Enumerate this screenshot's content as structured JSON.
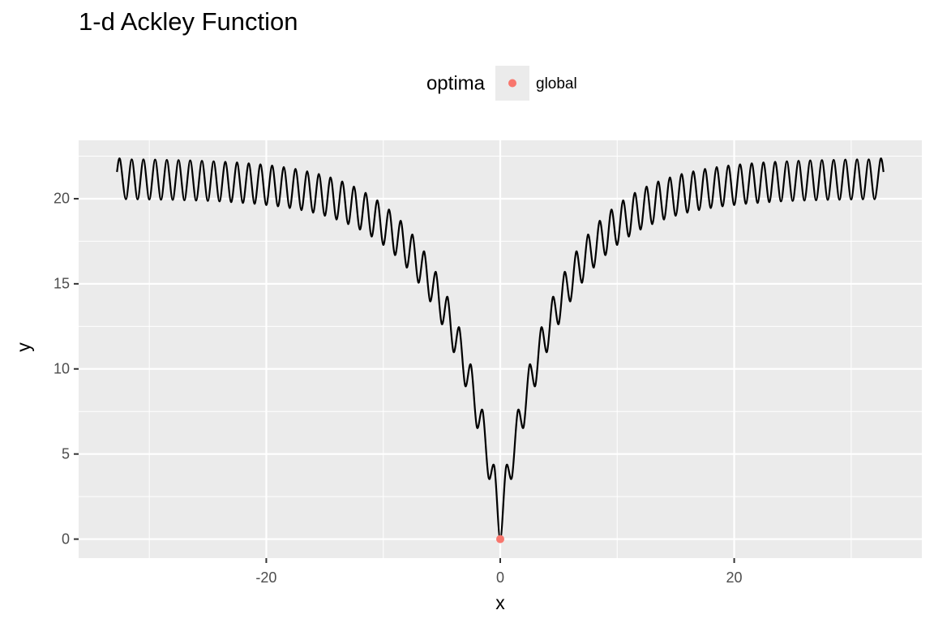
{
  "chart_data": {
    "type": "line",
    "title": "1-d Ackley Function",
    "x_label": "x",
    "y_label": "y",
    "xlim": [
      -36.04,
      36.04
    ],
    "ylim": [
      -1.116,
      23.43
    ],
    "xticks": [
      -20,
      0,
      20
    ],
    "yticks": [
      0,
      5,
      10,
      15,
      20
    ],
    "x_minor_breaks": [
      -30,
      -10,
      10,
      30
    ],
    "y_minor_breaks": [
      2.5,
      7.5,
      12.5,
      17.5,
      22.5
    ],
    "grid": true,
    "legend": "top",
    "x": [
      -32.768,
      -32.5,
      -32,
      -31.5,
      -31,
      -30.5,
      -30,
      -29.5,
      -29,
      -28.5,
      -28,
      -27.5,
      -27,
      -26.5,
      -26,
      -25.5,
      -25,
      -24.5,
      -24,
      -23.5,
      -23,
      -22.5,
      -22,
      -21.5,
      -21,
      -20.5,
      -20,
      -19.5,
      -19,
      -18.5,
      -18,
      -17.5,
      -17,
      -16.5,
      -16,
      -15.5,
      -15,
      -14.5,
      -14,
      -13.5,
      -13,
      -12.5,
      -12,
      -11.5,
      -11,
      -10.5,
      -10,
      -9.5,
      -9,
      -8.5,
      -8,
      -7.5,
      -7,
      -6.5,
      -6,
      -5.5,
      -5,
      -4.5,
      -4,
      -3.5,
      -3,
      -2.5,
      -2,
      -1.5,
      -1,
      -0.5,
      0,
      0.5,
      1,
      1.5,
      2,
      2.5,
      3,
      3.5,
      4,
      4.5,
      5,
      5.5,
      6,
      6.5,
      7,
      7.5,
      8,
      8.5,
      9,
      9.5,
      10,
      10.5,
      11,
      11.5,
      12,
      12.5,
      13,
      13.5,
      14,
      14.5,
      15,
      15.5,
      16,
      16.5,
      17,
      17.5,
      18,
      18.5,
      19,
      19.5,
      20,
      20.5,
      21,
      21.5,
      22,
      22.5,
      23,
      23.5,
      24,
      24.5,
      25,
      25.5,
      26,
      26.5,
      27,
      27.5,
      28,
      28.5,
      29,
      29.5,
      30,
      30.5,
      31,
      31.5,
      32,
      32.5,
      32.768
    ],
    "series": [
      {
        "color": "#000000",
        "values": [
          21.57,
          22.32,
          19.97,
          22.31,
          19.96,
          22.31,
          19.95,
          22.3,
          19.94,
          22.28,
          19.93,
          22.27,
          19.91,
          22.25,
          19.89,
          22.23,
          19.87,
          22.2,
          19.84,
          22.17,
          19.8,
          22.13,
          19.75,
          22.08,
          19.7,
          22.02,
          19.63,
          21.95,
          19.55,
          21.86,
          19.45,
          21.75,
          19.33,
          21.61,
          19.18,
          21.45,
          19.0,
          21.25,
          18.78,
          21.01,
          18.51,
          20.71,
          18.19,
          20.34,
          17.78,
          19.9,
          17.29,
          19.36,
          16.69,
          18.7,
          15.96,
          17.89,
          15.07,
          16.9,
          13.98,
          15.69,
          12.64,
          14.22,
          11.01,
          12.42,
          9.02,
          10.22,
          6.59,
          7.53,
          3.63,
          4.25,
          0,
          4.25,
          3.63,
          7.53,
          6.59,
          10.22,
          9.02,
          12.42,
          11.01,
          14.22,
          12.64,
          15.69,
          13.98,
          16.9,
          15.07,
          17.89,
          15.96,
          18.7,
          16.69,
          19.36,
          17.29,
          19.9,
          17.78,
          20.34,
          18.19,
          20.71,
          18.51,
          21.01,
          18.78,
          21.25,
          19.0,
          21.45,
          19.18,
          21.61,
          19.33,
          21.75,
          19.45,
          21.86,
          19.55,
          21.95,
          19.63,
          22.02,
          19.7,
          22.08,
          19.75,
          22.13,
          19.8,
          22.17,
          19.84,
          22.2,
          19.87,
          22.23,
          19.89,
          22.25,
          19.91,
          22.27,
          19.93,
          22.28,
          19.94,
          22.3,
          19.95,
          22.31,
          19.96,
          22.31,
          19.97,
          22.32,
          21.57
        ]
      }
    ],
    "points": {
      "legend_title": "optima",
      "name": "global",
      "color": "#F8766D",
      "x": [
        0
      ],
      "values": [
        0
      ]
    }
  }
}
